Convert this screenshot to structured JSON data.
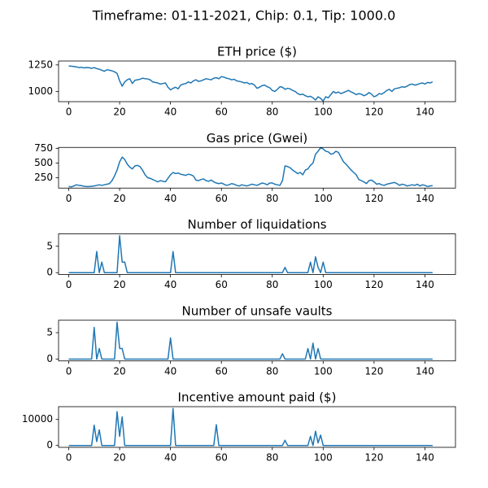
{
  "title": "Timeframe: 01-11-2021, Chip: 0.1, Tip: 1000.0",
  "chart_data": [
    {
      "type": "line",
      "title": "ETH price ($)",
      "color": "#1f77b4",
      "x": [
        0,
        1,
        2,
        3,
        4,
        5,
        6,
        7,
        8,
        9,
        10,
        11,
        12,
        13,
        14,
        15,
        16,
        17,
        18,
        19,
        20,
        21,
        22,
        23,
        24,
        25,
        26,
        27,
        28,
        29,
        30,
        31,
        32,
        33,
        34,
        35,
        36,
        37,
        38,
        39,
        40,
        41,
        42,
        43,
        44,
        45,
        46,
        47,
        48,
        49,
        50,
        51,
        52,
        53,
        54,
        55,
        56,
        57,
        58,
        59,
        60,
        61,
        62,
        63,
        64,
        65,
        66,
        67,
        68,
        69,
        70,
        71,
        72,
        73,
        74,
        75,
        76,
        77,
        78,
        79,
        80,
        81,
        82,
        83,
        84,
        85,
        86,
        87,
        88,
        89,
        90,
        91,
        92,
        93,
        94,
        95,
        96,
        97,
        98,
        99,
        100,
        101,
        102,
        103,
        104,
        105,
        106,
        107,
        108,
        109,
        110,
        111,
        112,
        113,
        114,
        115,
        116,
        117,
        118,
        119,
        120,
        121,
        122,
        123,
        124,
        125,
        126,
        127,
        128,
        129,
        130,
        131,
        132,
        133,
        134,
        135,
        136,
        137,
        138,
        139,
        140,
        141,
        142,
        143
      ],
      "values": [
        1240,
        1238,
        1235,
        1232,
        1225,
        1228,
        1222,
        1226,
        1224,
        1218,
        1225,
        1215,
        1210,
        1200,
        1190,
        1205,
        1200,
        1195,
        1185,
        1170,
        1100,
        1050,
        1090,
        1110,
        1120,
        1075,
        1105,
        1110,
        1115,
        1125,
        1120,
        1118,
        1110,
        1090,
        1085,
        1080,
        1070,
        1075,
        1080,
        1040,
        1015,
        1030,
        1040,
        1025,
        1060,
        1070,
        1075,
        1090,
        1080,
        1100,
        1110,
        1095,
        1100,
        1110,
        1120,
        1115,
        1110,
        1125,
        1130,
        1120,
        1140,
        1135,
        1125,
        1120,
        1110,
        1115,
        1100,
        1095,
        1090,
        1080,
        1085,
        1070,
        1075,
        1060,
        1030,
        1040,
        1055,
        1060,
        1045,
        1035,
        1010,
        1000,
        1020,
        1045,
        1040,
        1020,
        1030,
        1025,
        1010,
        1000,
        980,
        970,
        975,
        960,
        950,
        955,
        940,
        920,
        950,
        935,
        910,
        950,
        940,
        970,
        1000,
        985,
        995,
        980,
        990,
        1000,
        1010,
        995,
        985,
        970,
        980,
        975,
        960,
        970,
        990,
        975,
        950,
        960,
        980,
        975,
        990,
        1010,
        1020,
        1000,
        1025,
        1030,
        1035,
        1045,
        1040,
        1050,
        1065,
        1070,
        1060,
        1065,
        1075,
        1080,
        1070,
        1085,
        1080,
        1090
      ],
      "xlim": [
        -4,
        152
      ],
      "xticks": [
        0,
        20,
        40,
        60,
        80,
        100,
        120,
        140
      ],
      "ylim": [
        904,
        1287
      ],
      "yticks": [
        1000,
        1250
      ]
    },
    {
      "type": "line",
      "title": "Gas price (Gwei)",
      "color": "#1f77b4",
      "x": [
        0,
        1,
        2,
        3,
        4,
        5,
        6,
        7,
        8,
        9,
        10,
        11,
        12,
        13,
        14,
        15,
        16,
        17,
        18,
        19,
        20,
        21,
        22,
        23,
        24,
        25,
        26,
        27,
        28,
        29,
        30,
        31,
        32,
        33,
        34,
        35,
        36,
        37,
        38,
        39,
        40,
        41,
        42,
        43,
        44,
        45,
        46,
        47,
        48,
        49,
        50,
        51,
        52,
        53,
        54,
        55,
        56,
        57,
        58,
        59,
        60,
        61,
        62,
        63,
        64,
        65,
        66,
        67,
        68,
        69,
        70,
        71,
        72,
        73,
        74,
        75,
        76,
        77,
        78,
        79,
        80,
        81,
        82,
        83,
        84,
        85,
        86,
        87,
        88,
        89,
        90,
        91,
        92,
        93,
        94,
        95,
        96,
        97,
        98,
        99,
        100,
        101,
        102,
        103,
        104,
        105,
        106,
        107,
        108,
        109,
        110,
        111,
        112,
        113,
        114,
        115,
        116,
        117,
        118,
        119,
        120,
        121,
        122,
        123,
        124,
        125,
        126,
        127,
        128,
        129,
        130,
        131,
        132,
        133,
        134,
        135,
        136,
        137,
        138,
        139,
        140,
        141,
        142,
        143
      ],
      "values": [
        100,
        95,
        110,
        130,
        120,
        115,
        105,
        100,
        100,
        105,
        110,
        120,
        130,
        120,
        130,
        140,
        150,
        200,
        280,
        380,
        520,
        600,
        560,
        480,
        430,
        400,
        450,
        460,
        440,
        380,
        300,
        250,
        240,
        220,
        200,
        180,
        200,
        190,
        180,
        240,
        300,
        340,
        320,
        330,
        310,
        300,
        290,
        310,
        300,
        280,
        210,
        200,
        220,
        230,
        200,
        190,
        210,
        180,
        160,
        150,
        160,
        140,
        120,
        130,
        150,
        140,
        120,
        110,
        130,
        120,
        110,
        125,
        140,
        130,
        120,
        140,
        160,
        150,
        130,
        160,
        160,
        140,
        130,
        120,
        200,
        450,
        440,
        420,
        380,
        350,
        320,
        340,
        300,
        380,
        400,
        460,
        500,
        650,
        700,
        760,
        740,
        700,
        690,
        650,
        660,
        700,
        680,
        600,
        520,
        480,
        430,
        380,
        340,
        300,
        220,
        200,
        180,
        150,
        200,
        210,
        180,
        140,
        150,
        130,
        120,
        140,
        150,
        160,
        170,
        150,
        120,
        140,
        130,
        110,
        120,
        130,
        120,
        140,
        110,
        130,
        120,
        100,
        110,
        115
      ],
      "xlim": [
        -4,
        152
      ],
      "xticks": [
        0,
        20,
        40,
        60,
        80,
        100,
        120,
        140
      ],
      "ylim": [
        74,
        765
      ],
      "yticks": [
        250,
        500,
        750
      ]
    },
    {
      "type": "line",
      "title": "Number of liquidations",
      "color": "#1f77b4",
      "x": [
        0,
        1,
        2,
        3,
        4,
        5,
        6,
        7,
        8,
        9,
        10,
        11,
        12,
        13,
        14,
        15,
        16,
        17,
        18,
        19,
        20,
        21,
        22,
        23,
        24,
        25,
        26,
        27,
        28,
        29,
        30,
        31,
        32,
        33,
        34,
        35,
        36,
        37,
        38,
        39,
        40,
        41,
        42,
        43,
        44,
        45,
        46,
        47,
        48,
        49,
        50,
        51,
        52,
        53,
        54,
        55,
        56,
        57,
        58,
        59,
        60,
        61,
        62,
        63,
        64,
        65,
        66,
        67,
        68,
        69,
        70,
        71,
        72,
        73,
        74,
        75,
        76,
        77,
        78,
        79,
        80,
        81,
        82,
        83,
        84,
        85,
        86,
        87,
        88,
        89,
        90,
        91,
        92,
        93,
        94,
        95,
        96,
        97,
        98,
        99,
        100,
        101,
        102,
        103,
        104,
        105,
        106,
        107,
        108,
        109,
        110,
        111,
        112,
        113,
        114,
        115,
        116,
        117,
        118,
        119,
        120,
        121,
        122,
        123,
        124,
        125,
        126,
        127,
        128,
        129,
        130,
        131,
        132,
        133,
        134,
        135,
        136,
        137,
        138,
        139,
        140,
        141,
        142,
        143
      ],
      "values": [
        0,
        0,
        0,
        0,
        0,
        0,
        0,
        0,
        0,
        0,
        0,
        4,
        0,
        2,
        0,
        0,
        0,
        0,
        0,
        0,
        7,
        2,
        2,
        0,
        0,
        0,
        0,
        0,
        0,
        0,
        0,
        0,
        0,
        0,
        0,
        0,
        0,
        0,
        0,
        0,
        0,
        4,
        0,
        0,
        0,
        0,
        0,
        0,
        0,
        0,
        0,
        0,
        0,
        0,
        0,
        0,
        0,
        0,
        0,
        0,
        0,
        0,
        0,
        0,
        0,
        0,
        0,
        0,
        0,
        0,
        0,
        0,
        0,
        0,
        0,
        0,
        0,
        0,
        0,
        0,
        0,
        0,
        0,
        0,
        0,
        1,
        0,
        0,
        0,
        0,
        0,
        0,
        0,
        0,
        0,
        2,
        0,
        3,
        1,
        0,
        2,
        0,
        0,
        0,
        0,
        0,
        0,
        0,
        0,
        0,
        0,
        0,
        0,
        0,
        0,
        0,
        0,
        0,
        0,
        0,
        0,
        0,
        0,
        0,
        0,
        0,
        0,
        0,
        0,
        0,
        0,
        0,
        0,
        0,
        0,
        0,
        0,
        0,
        0,
        0,
        0,
        0,
        0,
        0
      ],
      "xlim": [
        -4,
        152
      ],
      "xticks": [
        0,
        20,
        40,
        60,
        80,
        100,
        120,
        140
      ],
      "ylim": [
        -0.35,
        7.35
      ],
      "yticks": [
        0,
        5
      ]
    },
    {
      "type": "line",
      "title": "Number of unsafe vaults",
      "color": "#1f77b4",
      "x": [
        0,
        1,
        2,
        3,
        4,
        5,
        6,
        7,
        8,
        9,
        10,
        11,
        12,
        13,
        14,
        15,
        16,
        17,
        18,
        19,
        20,
        21,
        22,
        23,
        24,
        25,
        26,
        27,
        28,
        29,
        30,
        31,
        32,
        33,
        34,
        35,
        36,
        37,
        38,
        39,
        40,
        41,
        42,
        43,
        44,
        45,
        46,
        47,
        48,
        49,
        50,
        51,
        52,
        53,
        54,
        55,
        56,
        57,
        58,
        59,
        60,
        61,
        62,
        63,
        64,
        65,
        66,
        67,
        68,
        69,
        70,
        71,
        72,
        73,
        74,
        75,
        76,
        77,
        78,
        79,
        80,
        81,
        82,
        83,
        84,
        85,
        86,
        87,
        88,
        89,
        90,
        91,
        92,
        93,
        94,
        95,
        96,
        97,
        98,
        99,
        100,
        101,
        102,
        103,
        104,
        105,
        106,
        107,
        108,
        109,
        110,
        111,
        112,
        113,
        114,
        115,
        116,
        117,
        118,
        119,
        120,
        121,
        122,
        123,
        124,
        125,
        126,
        127,
        128,
        129,
        130,
        131,
        132,
        133,
        134,
        135,
        136,
        137,
        138,
        139,
        140,
        141,
        142,
        143
      ],
      "values": [
        0,
        0,
        0,
        0,
        0,
        0,
        0,
        0,
        0,
        0,
        6,
        0,
        2,
        0,
        0,
        0,
        0,
        0,
        0,
        7,
        2,
        2,
        0,
        0,
        0,
        0,
        0,
        0,
        0,
        0,
        0,
        0,
        0,
        0,
        0,
        0,
        0,
        0,
        0,
        0,
        4,
        0,
        0,
        0,
        0,
        0,
        0,
        0,
        0,
        0,
        0,
        0,
        0,
        0,
        0,
        0,
        0,
        0,
        0,
        0,
        0,
        0,
        0,
        0,
        0,
        0,
        0,
        0,
        0,
        0,
        0,
        0,
        0,
        0,
        0,
        0,
        0,
        0,
        0,
        0,
        0,
        0,
        0,
        0,
        1,
        0,
        0,
        0,
        0,
        0,
        0,
        0,
        0,
        0,
        2,
        0,
        3,
        0,
        2,
        0,
        0,
        0,
        0,
        0,
        0,
        0,
        0,
        0,
        0,
        0,
        0,
        0,
        0,
        0,
        0,
        0,
        0,
        0,
        0,
        0,
        0,
        0,
        0,
        0,
        0,
        0,
        0,
        0,
        0,
        0,
        0,
        0,
        0,
        0,
        0,
        0,
        0,
        0,
        0,
        0,
        0,
        0,
        0,
        0
      ],
      "xlim": [
        -4,
        152
      ],
      "xticks": [
        0,
        20,
        40,
        60,
        80,
        100,
        120,
        140
      ],
      "ylim": [
        -0.35,
        7.35
      ],
      "yticks": [
        0,
        5
      ]
    },
    {
      "type": "line",
      "title": "Incentive amount paid ($)",
      "color": "#1f77b4",
      "x": [
        0,
        1,
        2,
        3,
        4,
        5,
        6,
        7,
        8,
        9,
        10,
        11,
        12,
        13,
        14,
        15,
        16,
        17,
        18,
        19,
        20,
        21,
        22,
        23,
        24,
        25,
        26,
        27,
        28,
        29,
        30,
        31,
        32,
        33,
        34,
        35,
        36,
        37,
        38,
        39,
        40,
        41,
        42,
        43,
        44,
        45,
        46,
        47,
        48,
        49,
        50,
        51,
        52,
        53,
        54,
        55,
        56,
        57,
        58,
        59,
        60,
        61,
        62,
        63,
        64,
        65,
        66,
        67,
        68,
        69,
        70,
        71,
        72,
        73,
        74,
        75,
        76,
        77,
        78,
        79,
        80,
        81,
        82,
        83,
        84,
        85,
        86,
        87,
        88,
        89,
        90,
        91,
        92,
        93,
        94,
        95,
        96,
        97,
        98,
        99,
        100,
        101,
        102,
        103,
        104,
        105,
        106,
        107,
        108,
        109,
        110,
        111,
        112,
        113,
        114,
        115,
        116,
        117,
        118,
        119,
        120,
        121,
        122,
        123,
        124,
        125,
        126,
        127,
        128,
        129,
        130,
        131,
        132,
        133,
        134,
        135,
        136,
        137,
        138,
        139,
        140,
        141,
        142,
        143
      ],
      "values": [
        0,
        0,
        0,
        0,
        0,
        0,
        0,
        0,
        0,
        0,
        7800,
        1500,
        6000,
        0,
        0,
        0,
        0,
        0,
        0,
        13000,
        3500,
        11000,
        0,
        0,
        0,
        0,
        0,
        0,
        0,
        0,
        0,
        0,
        0,
        0,
        0,
        0,
        0,
        0,
        0,
        0,
        0,
        14200,
        0,
        0,
        0,
        0,
        0,
        0,
        0,
        0,
        0,
        0,
        0,
        0,
        0,
        0,
        0,
        0,
        8000,
        0,
        0,
        0,
        0,
        0,
        0,
        0,
        0,
        0,
        0,
        0,
        0,
        0,
        0,
        0,
        0,
        0,
        0,
        0,
        0,
        0,
        0,
        0,
        0,
        0,
        0,
        2000,
        0,
        0,
        0,
        0,
        0,
        0,
        0,
        0,
        0,
        3500,
        0,
        5500,
        1000,
        4000,
        0,
        0,
        0,
        0,
        0,
        0,
        0,
        0,
        0,
        0,
        0,
        0,
        0,
        0,
        0,
        0,
        0,
        0,
        0,
        0,
        0,
        0,
        0,
        0,
        0,
        0,
        0,
        0,
        0,
        0,
        0,
        0,
        0,
        0,
        0,
        0,
        0,
        0,
        0,
        0,
        0,
        0,
        0,
        0
      ],
      "xlim": [
        -4,
        152
      ],
      "xticks": [
        0,
        20,
        40,
        60,
        80,
        100,
        120,
        140
      ],
      "ylim": [
        -710,
        14910
      ],
      "yticks": [
        0,
        10000
      ]
    }
  ]
}
